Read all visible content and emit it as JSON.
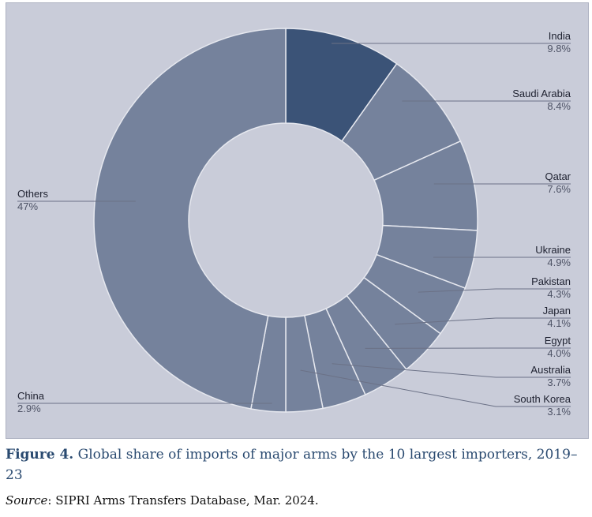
{
  "chart_data": {
    "type": "pie",
    "donut": true,
    "categories": [
      "India",
      "Saudi Arabia",
      "Qatar",
      "Ukraine",
      "Pakistan",
      "Japan",
      "Egypt",
      "Australia",
      "South Korea",
      "China",
      "Others"
    ],
    "values": [
      9.8,
      8.4,
      7.6,
      4.9,
      4.3,
      4.1,
      4.0,
      3.7,
      3.1,
      2.9,
      47
    ],
    "value_labels": [
      "9.8%",
      "8.4%",
      "7.6%",
      "4.9%",
      "4.3%",
      "4.1%",
      "4.0%",
      "3.7%",
      "3.1%",
      "2.9%",
      "47%"
    ],
    "unit": "%",
    "colors": {
      "highlight": "#3b5377",
      "default": "#75829c",
      "background": "#c9ccd9",
      "slice_border": "#e6e8ef",
      "leader_line": "#6b7186"
    },
    "highlighted_category": "India"
  },
  "caption": {
    "figure_label": "Figure 4.",
    "text": " Global share of imports of major arms by the 10 largest importers, 2019–23"
  },
  "source": {
    "label": "Source",
    "text": ": SIPRI Arms Transfers Database, Mar. 2024."
  }
}
